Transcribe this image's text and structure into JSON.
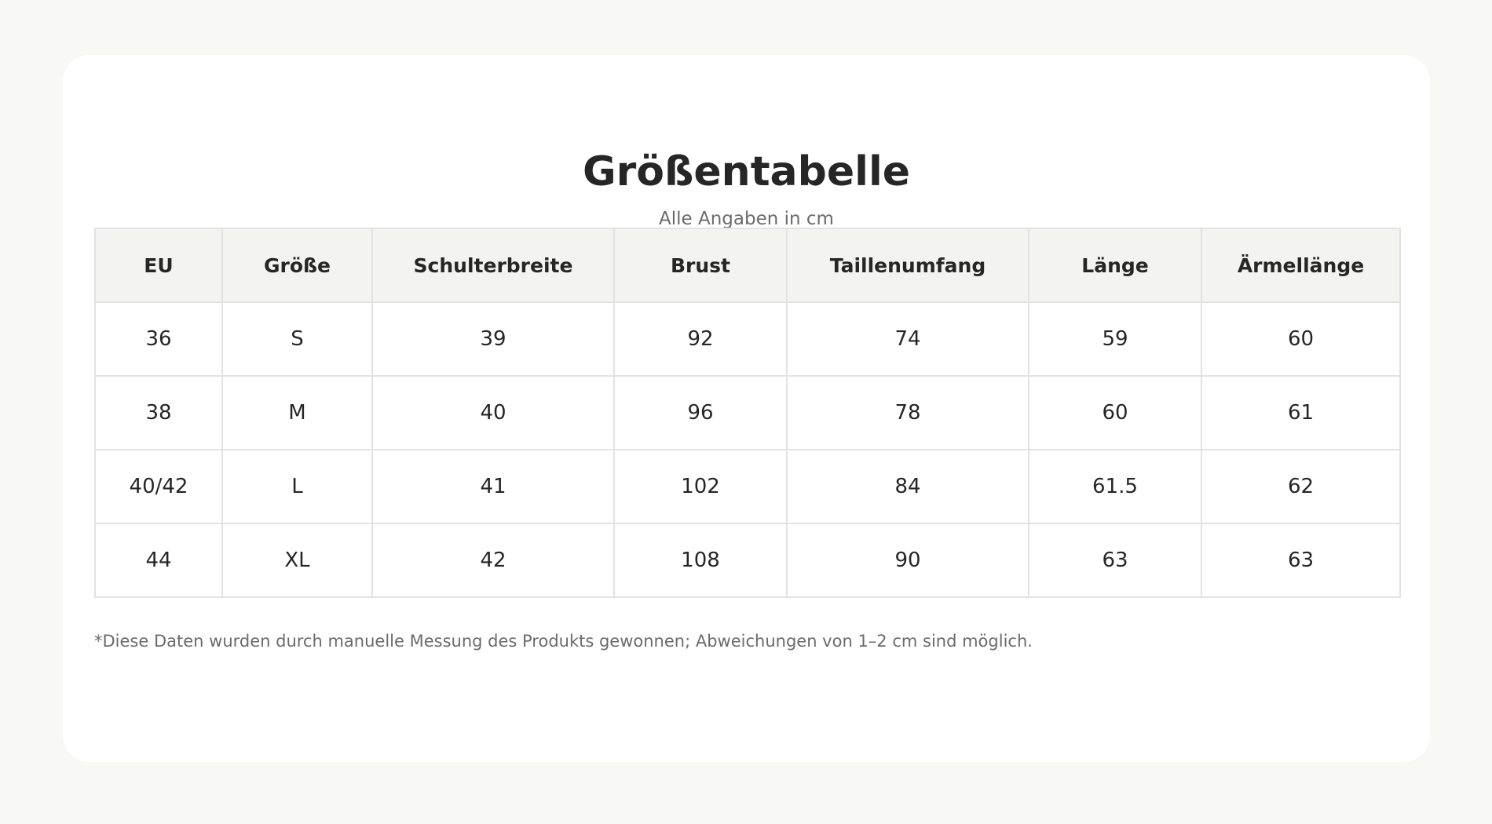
{
  "header": {
    "title": "Größentabelle",
    "subtitle": "Alle Angaben in cm"
  },
  "table": {
    "columns": [
      "EU",
      "Größe",
      "Schulterbreite",
      "Brust",
      "Taillenumfang",
      "Länge",
      "Ärmellänge"
    ],
    "rows": [
      [
        "36",
        "S",
        "39",
        "92",
        "74",
        "59",
        "60"
      ],
      [
        "38",
        "M",
        "40",
        "96",
        "78",
        "60",
        "61"
      ],
      [
        "40/42",
        "L",
        "41",
        "102",
        "84",
        "61.5",
        "62"
      ],
      [
        "44",
        "XL",
        "42",
        "108",
        "90",
        "63",
        "63"
      ]
    ]
  },
  "footer": {
    "note": "*Diese Daten wurden durch manuelle Messung des Produkts gewonnen; Abweichungen von 1–2 cm sind möglich."
  },
  "colors": {
    "page_background": "#f8f8f7",
    "card_background": "#ffffff",
    "header_row_background": "#f3f3f2",
    "border": "#e3e3e3",
    "text": "#262626",
    "muted_text": "#6b6b6b"
  }
}
